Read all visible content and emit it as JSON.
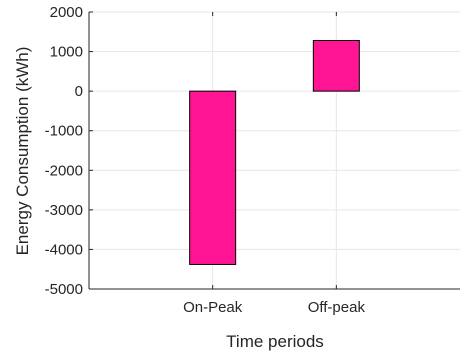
{
  "chart_data": {
    "type": "bar",
    "categories": [
      "On-Peak",
      "Off-peak"
    ],
    "values": [
      -4380,
      1280
    ],
    "title": "",
    "xlabel": "Time periods",
    "ylabel": "Energy Consumption (kWh)",
    "ylim": [
      -5000,
      2000
    ],
    "yticks": [
      -5000,
      -4000,
      -3000,
      -2000,
      -1000,
      0,
      1000,
      2000
    ],
    "xlim": [
      0,
      3
    ],
    "xticks": [
      1,
      2
    ],
    "grid": true,
    "bar_color": "#ff1493",
    "bar_edge_color": "#000000",
    "grid_color": "#e6e6e6",
    "axis_color": "#262626"
  }
}
